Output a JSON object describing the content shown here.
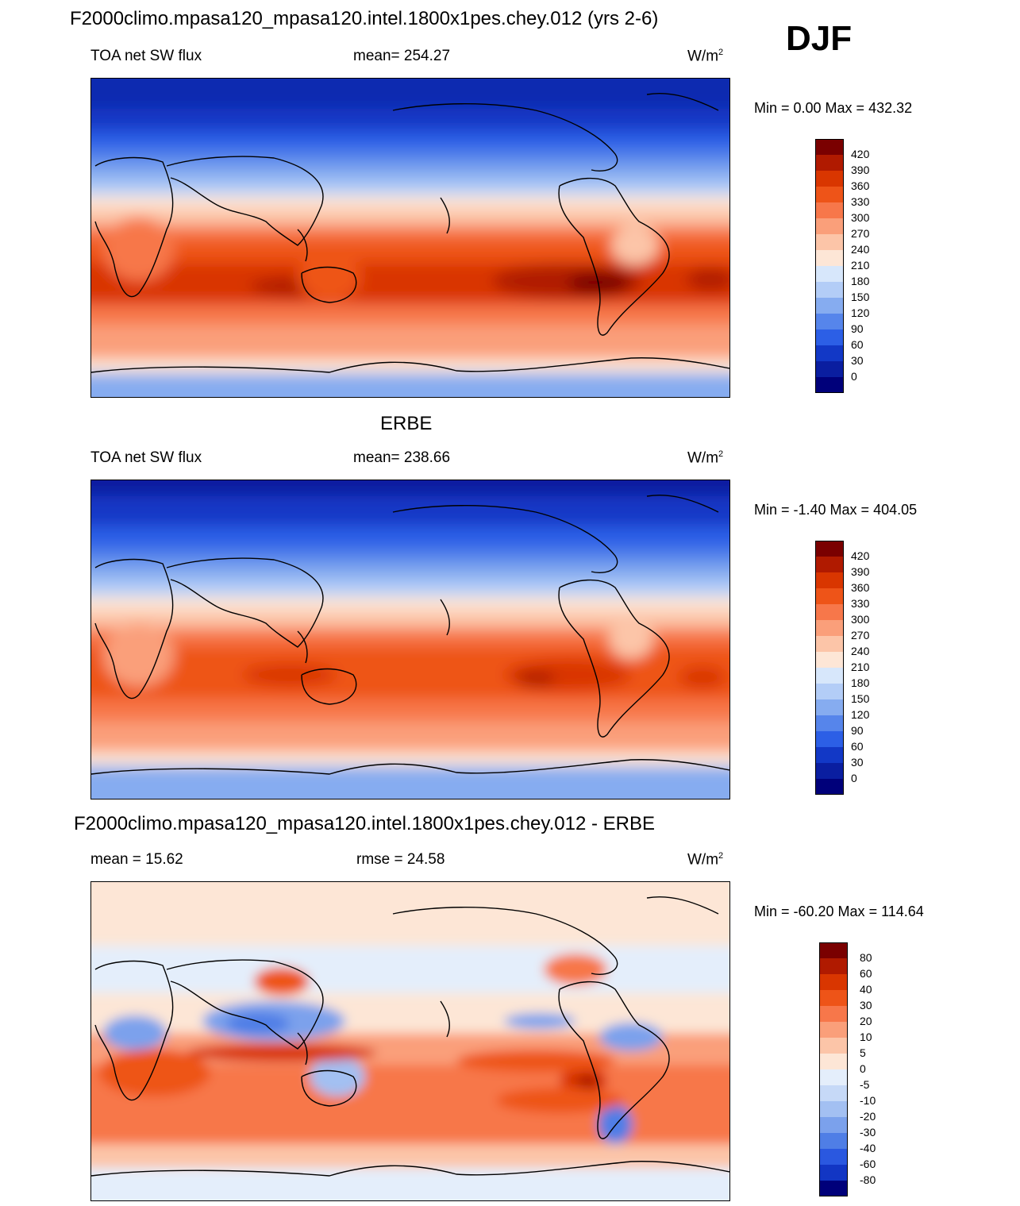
{
  "season": "DJF",
  "units_label": "W/m",
  "units_exp": "2",
  "panels": [
    {
      "title": "F2000climo.mpasa120_mpasa120.intel.1800x1pes.chey.012 (yrs 2-6)",
      "left_label": "TOA net SW flux",
      "center_label": "mean= 254.27",
      "minmax": "Min =   0.00 Max = 432.32",
      "colorbar_ticks": [
        "420",
        "390",
        "360",
        "330",
        "300",
        "270",
        "240",
        "210",
        "180",
        "150",
        "120",
        "90",
        "60",
        "30",
        "0"
      ]
    },
    {
      "title": "ERBE",
      "left_label": "TOA net SW flux",
      "center_label": "mean= 238.66",
      "minmax": "Min =  -1.40 Max = 404.05",
      "colorbar_ticks": [
        "420",
        "390",
        "360",
        "330",
        "300",
        "270",
        "240",
        "210",
        "180",
        "150",
        "120",
        "90",
        "60",
        "30",
        "0"
      ]
    },
    {
      "title": "F2000climo.mpasa120_mpasa120.intel.1800x1pes.chey.012 - ERBE",
      "left_label": "mean =  15.62",
      "center_label": "rmse =  24.58",
      "minmax": "Min = -60.20 Max = 114.64",
      "colorbar_ticks": [
        "80",
        "60",
        "40",
        "30",
        "20",
        "10",
        "5",
        "0",
        "-5",
        "-10",
        "-20",
        "-30",
        "-40",
        "-60",
        "-80"
      ]
    }
  ],
  "colors": {
    "abs_scale": [
      "#7a0000",
      "#b01a00",
      "#d93600",
      "#ee5418",
      "#f7774a",
      "#fa9f7a",
      "#fcc5a8",
      "#fde6d6",
      "#d7e7fb",
      "#b3cdf7",
      "#86acf0",
      "#5685eb",
      "#2c5fe6",
      "#1238c6",
      "#0a1ea0",
      "#00007a"
    ],
    "diff_scale": [
      "#7a0000",
      "#b01a00",
      "#d93600",
      "#ee5418",
      "#f7774a",
      "#fa9f7a",
      "#fcc5a8",
      "#fde6d6",
      "#e4eefb",
      "#c6d9f7",
      "#a3c0f2",
      "#7ba1ec",
      "#4f7ee6",
      "#2a58e0",
      "#1236c4",
      "#00007a"
    ]
  }
}
